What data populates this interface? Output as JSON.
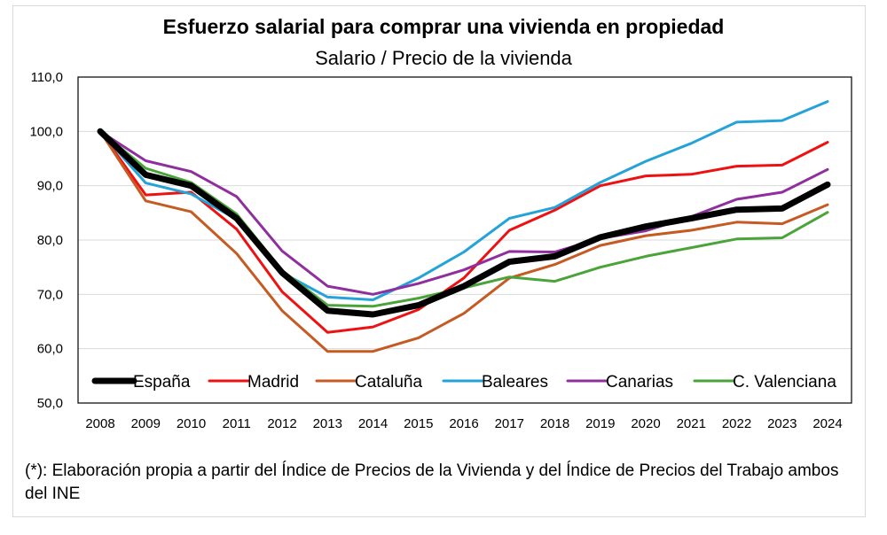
{
  "chart_data": {
    "type": "line",
    "title": "Esfuerzo salarial para comprar una vivienda en propiedad",
    "subtitle": "Salario / Precio de la vivienda",
    "xlabel": "",
    "ylabel": "",
    "ylim": [
      50,
      110
    ],
    "yticks": [
      "50,0",
      "60,0",
      "70,0",
      "80,0",
      "90,0",
      "100,0",
      "110,0"
    ],
    "categories": [
      "2008",
      "2009",
      "2010",
      "2011",
      "2012",
      "2013",
      "2014",
      "2015",
      "2016",
      "2017",
      "2018",
      "2019",
      "2020",
      "2021",
      "2022",
      "2023",
      "2024"
    ],
    "legend_position": "bottom-inside",
    "series": [
      {
        "name": "España",
        "color": "#000000",
        "width": 7,
        "values": [
          100,
          92,
          90,
          84,
          74,
          67,
          66.3,
          68,
          71.5,
          76,
          77,
          80.5,
          82.5,
          84,
          85.6,
          85.8,
          90.2
        ]
      },
      {
        "name": "Madrid",
        "color": "#ee1111",
        "width": 3,
        "values": [
          100,
          88.3,
          88.8,
          82,
          70.5,
          63,
          64,
          67.2,
          73,
          81.8,
          85.5,
          90,
          91.8,
          92.1,
          93.6,
          93.8,
          98
        ]
      },
      {
        "name": "Cataluña",
        "color": "#c55a23",
        "width": 3,
        "values": [
          100,
          87.2,
          85.2,
          77.5,
          67,
          59.5,
          59.5,
          62,
          66.5,
          73,
          75.5,
          79,
          80.8,
          81.8,
          83.3,
          83,
          86.5
        ]
      },
      {
        "name": "Baleares",
        "color": "#25a3d9",
        "width": 3,
        "values": [
          100,
          90.5,
          88.5,
          83.8,
          74,
          69.5,
          69,
          73,
          77.8,
          84,
          86,
          90.6,
          94.5,
          97.8,
          101.7,
          102,
          105.5
        ]
      },
      {
        "name": "Canarias",
        "color": "#8f2f9e",
        "width": 3,
        "values": [
          100,
          94.6,
          92.6,
          88,
          78,
          71.5,
          70,
          72,
          74.5,
          77.9,
          77.8,
          80.3,
          81.7,
          84.3,
          87.5,
          88.8,
          93
        ]
      },
      {
        "name": "C. Valenciana",
        "color": "#4aa43a",
        "width": 3,
        "values": [
          100,
          93.2,
          90.6,
          84.8,
          74.4,
          68,
          67.8,
          69.3,
          71.2,
          73.2,
          72.4,
          75,
          77,
          78.6,
          80.2,
          80.4,
          85.1
        ]
      }
    ]
  },
  "note": "(*): Elaboración propia a partir del Índice de Precios de la Vivienda y del Índice de Precios del Trabajo ambos del INE"
}
